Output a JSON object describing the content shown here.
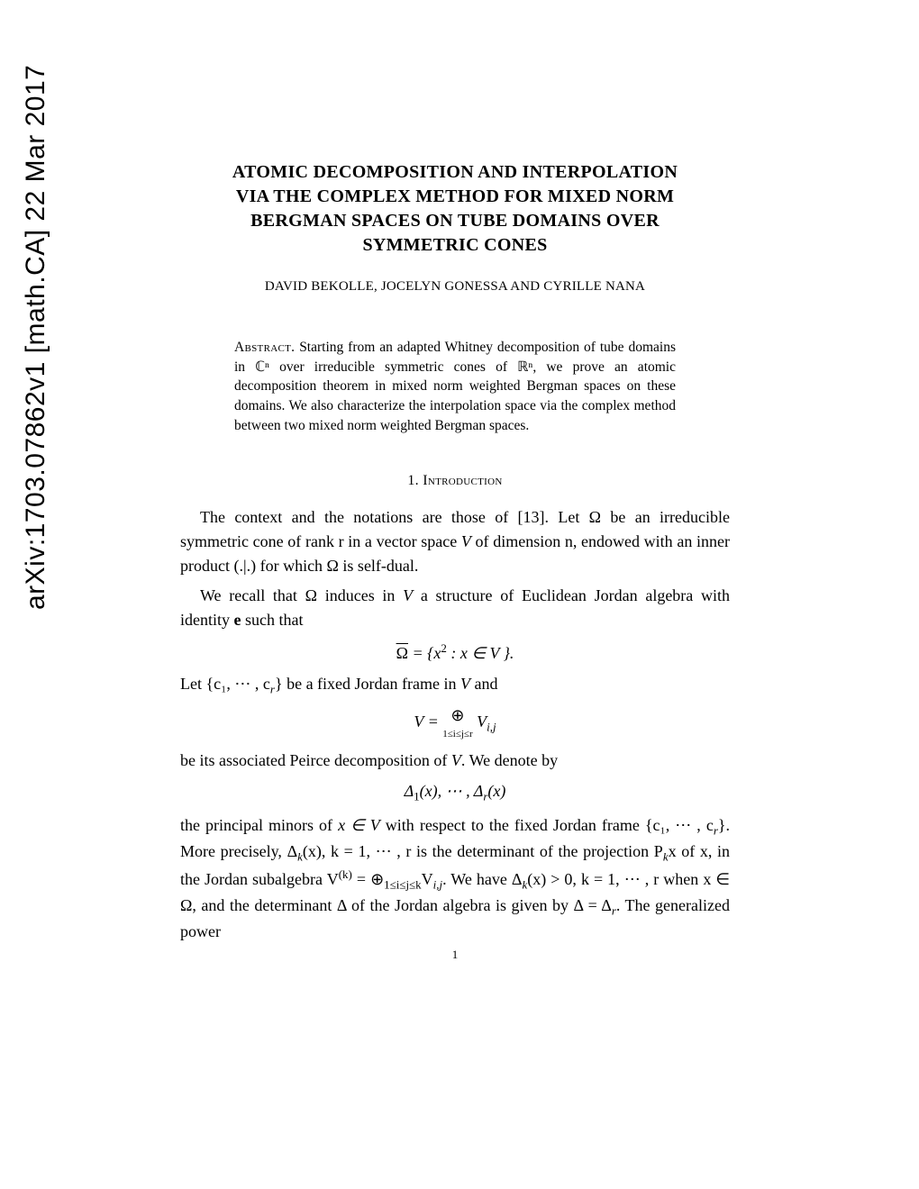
{
  "arxiv_stamp": "arXiv:1703.07862v1  [math.CA]  22 Mar 2017",
  "title_lines": [
    "ATOMIC DECOMPOSITION AND INTERPOLATION",
    "VIA THE COMPLEX METHOD FOR MIXED NORM",
    "BERGMAN SPACES ON TUBE DOMAINS OVER",
    "SYMMETRIC CONES"
  ],
  "authors": "DAVID BEKOLLE, JOCELYN GONESSA AND CYRILLE NANA",
  "abstract_label": "Abstract.",
  "abstract_text": " Starting from an adapted Whitney decomposition of tube domains in ℂⁿ over irreducible symmetric cones of ℝⁿ, we prove an atomic decomposition theorem in mixed norm weighted Bergman spaces on these domains. We also characterize the interpolation space via the complex method between two mixed norm weighted Bergman spaces.",
  "section_heading": "1. Introduction",
  "para1_a": "The context and the notations are those of [13]. Let Ω be an irreducible symmetric cone of rank r in a vector space ",
  "para1_b": " of dimension n, endowed with an inner product (.|.) for which Ω is self-dual.",
  "para2_a": "We recall that Ω induces in ",
  "para2_b": " a structure of Euclidean Jordan algebra with identity ",
  "para2_c": " such that",
  "eq1": "Ω̄ = {x² : x ∈ V }.",
  "para3_a": "Let {c₁, ⋯ , c",
  "para3_b": "} be a fixed Jordan frame in ",
  "para3_c": " and",
  "eq2": "V = ⊕  V_{i,j}",
  "eq2_sub": "1≤i≤j≤r",
  "para4_a": "be its associated Peirce decomposition of ",
  "para4_b": ". We denote by",
  "eq3": "Δ₁(x), ⋯ , Δ_r(x)",
  "para5_a": "the principal minors of ",
  "para5_b": " with respect to the fixed Jordan frame {c₁, ⋯ , c",
  "para5_c": "}. More precisely, Δ",
  "para5_d": "(x),  k = 1, ⋯ , r is the determinant of the projection P",
  "para5_e": "x of x, in the Jordan subalgebra V",
  "para5_f": " = ⊕",
  "para5_g": "V",
  "para5_h": ". We have Δ",
  "para5_i": "(x) > 0, k = 1, ⋯ , r when x ∈ Ω, and the determinant Δ of the Jordan algebra is given by Δ = Δ",
  "para5_j": ". The generalized power",
  "page_number": "1",
  "italic_V": "V",
  "italic_x_in_V": "x ∈ V",
  "bold_e": "e",
  "sub_r": "r",
  "sub_k": "k",
  "sup_k": "(k)",
  "sub_ij": "i,j",
  "sub_range": "1≤i≤j≤k"
}
